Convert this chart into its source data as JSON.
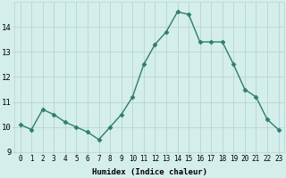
{
  "x": [
    0,
    1,
    2,
    3,
    4,
    5,
    6,
    7,
    8,
    9,
    10,
    11,
    12,
    13,
    14,
    15,
    16,
    17,
    18,
    19,
    20,
    21,
    22,
    23
  ],
  "y": [
    10.1,
    9.9,
    10.7,
    10.5,
    10.2,
    10.0,
    9.8,
    9.5,
    10.0,
    10.5,
    11.2,
    12.5,
    13.3,
    13.8,
    14.6,
    14.5,
    13.4,
    13.4,
    13.4,
    12.5,
    11.5,
    11.2,
    10.3,
    9.9
  ],
  "line_color": "#2e7d6e",
  "marker": "D",
  "marker_size": 2.5,
  "bg_color": "#d4eeeb",
  "grid_color": "#b8d4d0",
  "xlabel": "Humidex (Indice chaleur)",
  "ylabel_ticks": [
    9,
    10,
    11,
    12,
    13,
    14
  ],
  "xlim": [
    -0.5,
    23.5
  ],
  "ylim": [
    9.0,
    15.0
  ],
  "figsize": [
    3.2,
    2.0
  ],
  "dpi": 100
}
